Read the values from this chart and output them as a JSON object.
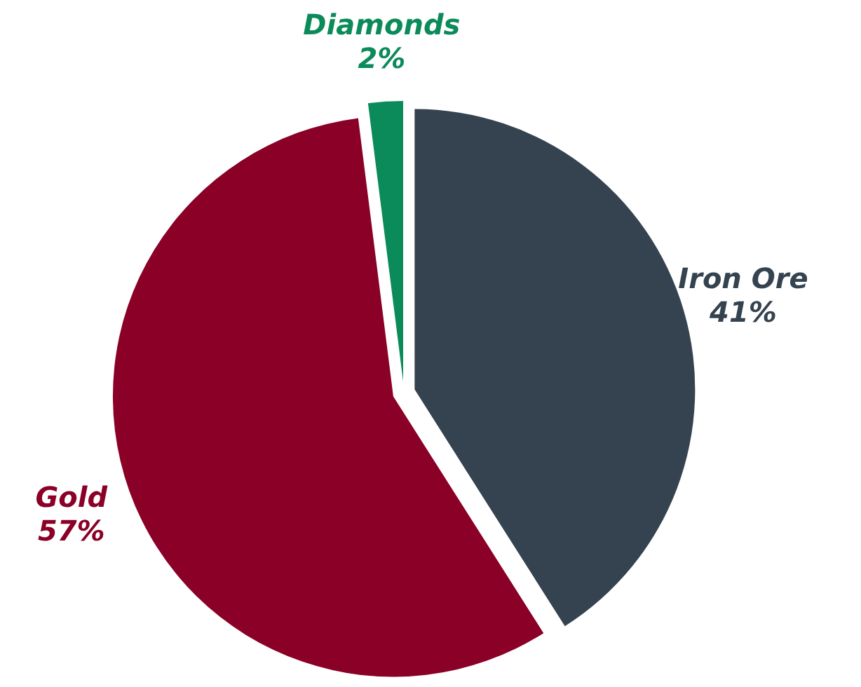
{
  "chart_data": {
    "type": "pie",
    "categories": [
      "Iron Ore",
      "Gold",
      "Diamonds"
    ],
    "values": [
      41,
      57,
      2
    ],
    "colors": [
      "#34434f",
      "#8a0026",
      "#0b8a5a"
    ],
    "value_labels": [
      "41%",
      "57%",
      "2%"
    ]
  }
}
